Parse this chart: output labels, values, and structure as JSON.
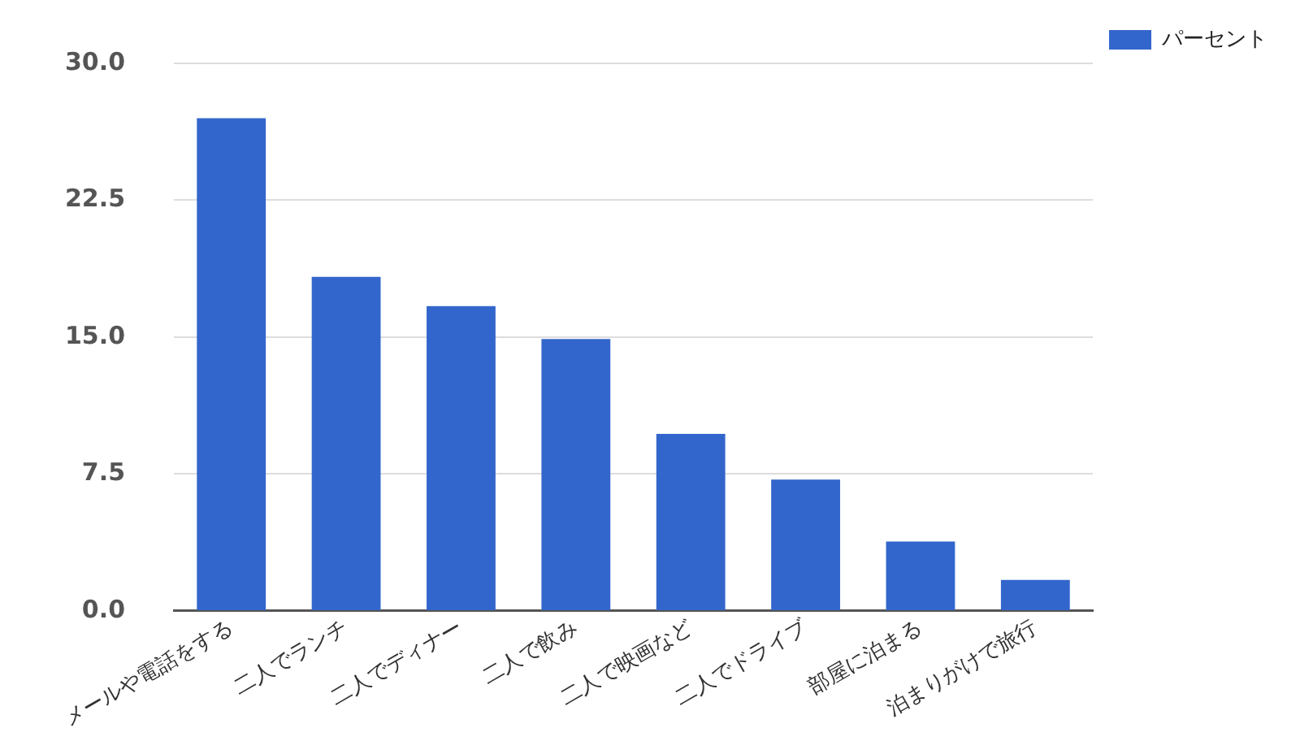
{
  "chart_data": {
    "type": "bar",
    "categories": [
      "メールや電話をする",
      "二人でランチ",
      "二人でディナー",
      "二人で飲み",
      "二人で映画など",
      "二人でドライブ",
      "部屋に泊まる",
      "泊まりがけで旅行"
    ],
    "series": [
      {
        "name": "パーセント",
        "color": "#3366cc",
        "values": [
          27.0,
          18.3,
          16.7,
          14.9,
          9.7,
          7.2,
          3.8,
          1.7
        ]
      }
    ],
    "ylim": [
      0,
      30
    ],
    "yticks": [
      {
        "value": 0,
        "label": "0.0"
      },
      {
        "value": 7.5,
        "label": "7.5"
      },
      {
        "value": 15,
        "label": "15.0"
      },
      {
        "value": 22.5,
        "label": "22.5"
      },
      {
        "value": 30,
        "label": "30.0"
      }
    ],
    "grid": "y",
    "legend": "top right"
  }
}
